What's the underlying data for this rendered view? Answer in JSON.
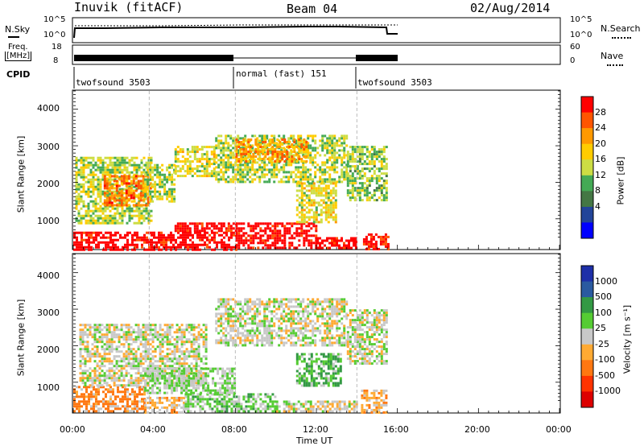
{
  "header": {
    "station": "Inuvik (fitACF)",
    "beam": "Beam 04",
    "date": "02/Aug/2014"
  },
  "top_panels": {
    "nsky_label": "N.Sky",
    "nsky_ticks": [
      "10^5",
      "10^0"
    ],
    "nsearch_label": "N.Search",
    "nsearch_ticks": [
      "10^5",
      "10^0"
    ],
    "freq_label_line1": "Freq.",
    "freq_label_line2": "[MHz]",
    "freq_ticks": [
      "18",
      "8"
    ],
    "nave_label": "Nave",
    "nave_ticks": [
      "60",
      "0"
    ],
    "cpid_label": "CPID"
  },
  "cpid_segments": [
    {
      "label": "twofsound 3503",
      "start_hour": 0
    },
    {
      "label": "normal (fast) 151",
      "start_hour": 8
    },
    {
      "label": "twofsound 3503",
      "start_hour": 14
    }
  ],
  "x_axis": {
    "title": "Time UT",
    "ticks": [
      "00:00",
      "04:00",
      "08:00",
      "12:00",
      "16:00",
      "20:00",
      "00:00"
    ]
  },
  "y_axis": {
    "title": "Slant Range [km]",
    "ticks": [
      "4000",
      "3000",
      "2000",
      "1000"
    ]
  },
  "colorbars": {
    "power": {
      "title": "Power [dB]",
      "labels": [
        "28",
        "24",
        "20",
        "16",
        "12",
        "8",
        "4"
      ],
      "colors": [
        "#ff0000",
        "#ff5500",
        "#ff9900",
        "#ffcc00",
        "#ccdd44",
        "#44aa55",
        "#447744",
        "#224499",
        "#0000ff"
      ]
    },
    "velocity": {
      "title": "Velocity [m s⁻¹]",
      "labels": [
        "1000",
        "500",
        "100",
        "25",
        "-25",
        "-100",
        "-500",
        "-1000"
      ],
      "colors": [
        "#1d2fa8",
        "#2a5aa0",
        "#339944",
        "#55cc33",
        "#c8c8c8",
        "#ffaa33",
        "#ff7711",
        "#ff3300",
        "#dd0000"
      ]
    }
  },
  "chart_data": {
    "type": "heatmap",
    "x_range_hours": [
      0,
      24
    ],
    "y_range_km": [
      180,
      4500
    ],
    "data_coverage_hours": [
      0,
      15.5
    ],
    "colors": {
      "noise": "#c8c8c8"
    },
    "power_regions": [
      {
        "t0": 0.0,
        "t1": 8.0,
        "r0": 180,
        "r1": 650,
        "value_db": 30
      },
      {
        "t0": 5.0,
        "t1": 8.0,
        "r0": 650,
        "r1": 900,
        "value_db": 30
      },
      {
        "t0": 8.0,
        "t1": 12.0,
        "r0": 180,
        "r1": 900,
        "value_db": 30
      },
      {
        "t0": 12.0,
        "t1": 14.0,
        "r0": 180,
        "r1": 500,
        "value_db": 30
      },
      {
        "t0": 14.3,
        "t1": 15.5,
        "r0": 180,
        "r1": 600,
        "value_db": 28
      },
      {
        "t0": 0.1,
        "t1": 3.8,
        "r0": 900,
        "r1": 2700,
        "value_db": 12
      },
      {
        "t0": 1.5,
        "t1": 3.8,
        "r0": 1400,
        "r1": 2200,
        "value_db": 22
      },
      {
        "t0": 3.5,
        "t1": 5.0,
        "r0": 1500,
        "r1": 2500,
        "value_db": 12
      },
      {
        "t0": 5.0,
        "t1": 7.0,
        "r0": 2200,
        "r1": 3000,
        "value_db": 14
      },
      {
        "t0": 7.0,
        "t1": 13.5,
        "r0": 2000,
        "r1": 3300,
        "value_db": 12
      },
      {
        "t0": 8.0,
        "t1": 11.5,
        "r0": 2600,
        "r1": 3200,
        "value_db": 20
      },
      {
        "t0": 11.0,
        "t1": 13.0,
        "r0": 900,
        "r1": 2000,
        "value_db": 14
      },
      {
        "t0": 13.5,
        "t1": 15.5,
        "r0": 1500,
        "r1": 3000,
        "value_db": 10
      }
    ],
    "velocity_regions": [
      {
        "t0": 0.0,
        "t1": 3.5,
        "r0": 180,
        "r1": 900,
        "value_ms": -150
      },
      {
        "t0": 3.5,
        "t1": 5.5,
        "r0": 180,
        "r1": 600,
        "value_ms": -60
      },
      {
        "t0": 5.5,
        "t1": 10.0,
        "r0": 180,
        "r1": 700,
        "value_ms": 60
      },
      {
        "t0": 10.0,
        "t1": 14.0,
        "r0": 180,
        "r1": 500,
        "value_ms": 0
      },
      {
        "t0": 14.2,
        "t1": 15.5,
        "r0": 180,
        "r1": 800,
        "value_ms": -70
      },
      {
        "t0": 0.3,
        "t1": 6.5,
        "r0": 900,
        "r1": 2600,
        "value_ms": 0
      },
      {
        "t0": 3.5,
        "t1": 8.0,
        "r0": 700,
        "r1": 1400,
        "value_ms": 40
      },
      {
        "t0": 7.0,
        "t1": 13.5,
        "r0": 2000,
        "r1": 3300,
        "value_ms": 0
      },
      {
        "t0": 11.0,
        "t1": 13.2,
        "r0": 900,
        "r1": 1800,
        "value_ms": 120
      },
      {
        "t0": 13.5,
        "t1": 15.5,
        "r0": 1500,
        "r1": 3000,
        "value_ms": 0
      }
    ]
  }
}
